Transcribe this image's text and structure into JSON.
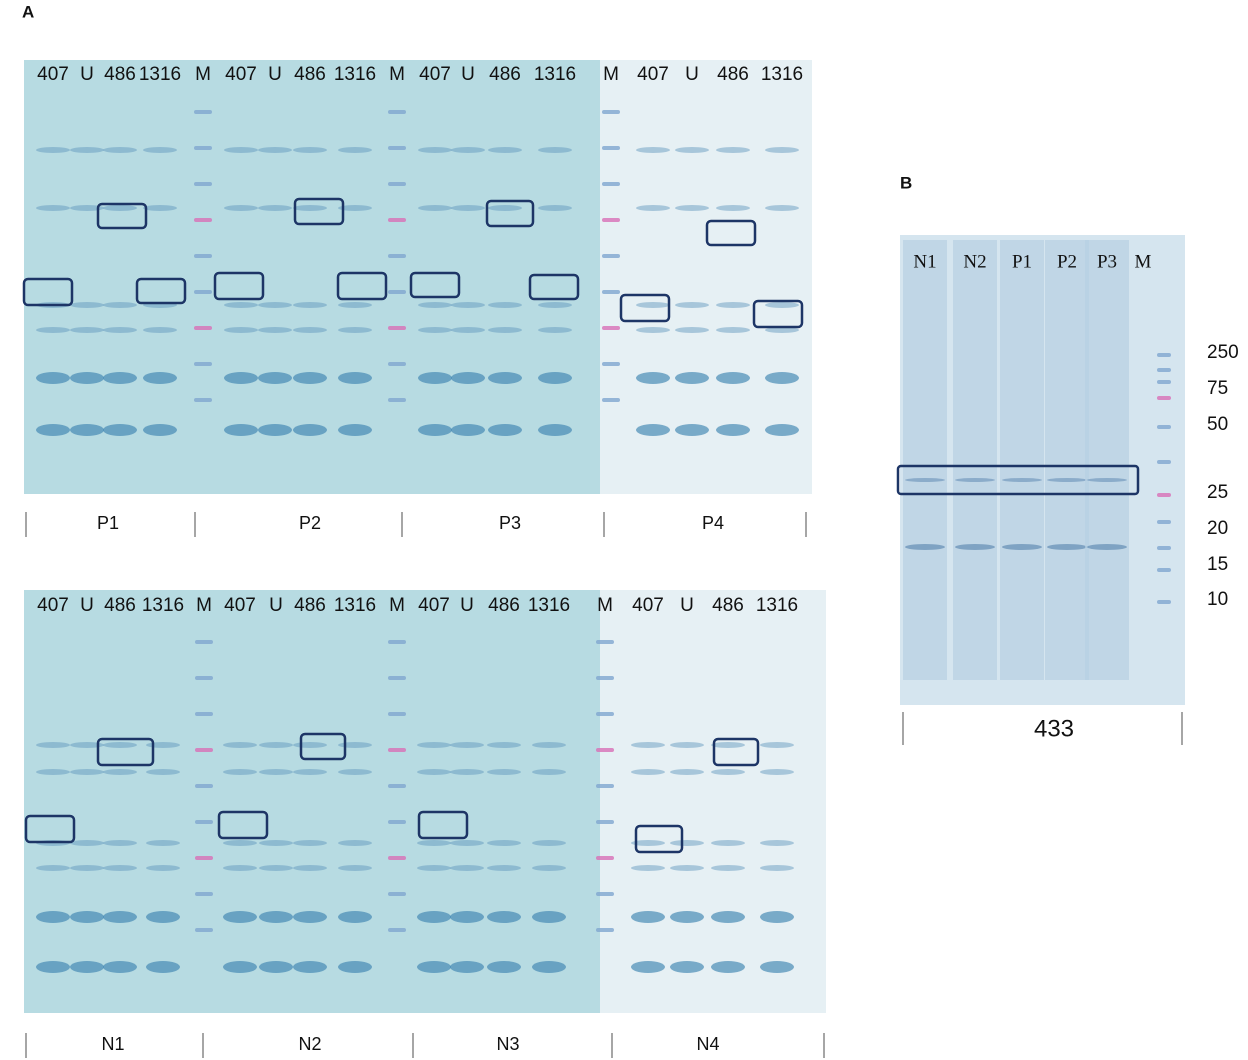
{
  "panel_a": {
    "label": "A",
    "rows": [
      {
        "blots": [
          {
            "lanes": [
              "407",
              "U",
              "486",
              "1316",
              "M"
            ],
            "sample": "P1"
          },
          {
            "lanes": [
              "407",
              "U",
              "486",
              "1316",
              "M"
            ],
            "sample": "P2"
          },
          {
            "lanes": [
              "407",
              "U",
              "486",
              "1316"
            ],
            "sample": "P3"
          },
          {
            "lanes": [
              "M",
              "407",
              "U",
              "486",
              "1316"
            ],
            "sample": "P4"
          }
        ]
      },
      {
        "blots": [
          {
            "lanes": [
              "407",
              "U",
              "486",
              "1316",
              "M"
            ],
            "sample": "N1"
          },
          {
            "lanes": [
              "407",
              "U",
              "486",
              "1316",
              "M"
            ],
            "sample": "N2"
          },
          {
            "lanes": [
              "407",
              "U",
              "486",
              "1316"
            ],
            "sample": "N3"
          },
          {
            "lanes": [
              "M",
              "407",
              "U",
              "486",
              "1316"
            ],
            "sample": "N4"
          }
        ]
      }
    ]
  },
  "panel_b": {
    "label": "B",
    "lanes": [
      "N1",
      "N2",
      "P1",
      "P2",
      "P3",
      "M"
    ],
    "markers": [
      "250",
      "75",
      "50",
      "25",
      "20",
      "15",
      "10"
    ],
    "sample": "433"
  }
}
